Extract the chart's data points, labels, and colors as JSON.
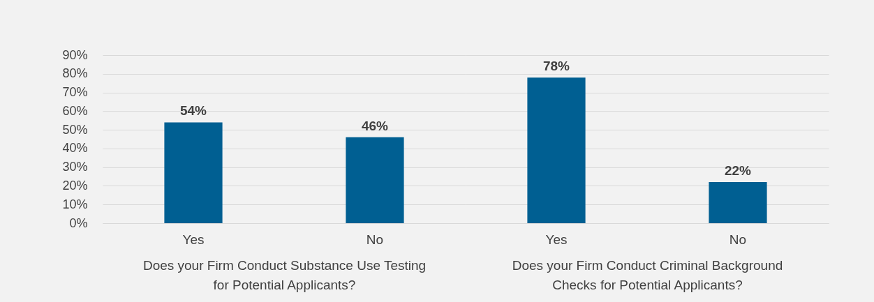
{
  "chart_data": [
    {
      "type": "bar",
      "xlabel": "Does your Firm Conduct Substance Use Testing for Potential Applicants?",
      "categories": [
        "Yes",
        "No"
      ],
      "values": [
        54,
        46
      ],
      "value_labels": [
        "54%",
        "46%"
      ],
      "color": "#005f92",
      "ylim": [
        0,
        90
      ],
      "yticks": [
        {
          "value": 0,
          "label": "0%"
        },
        {
          "value": 10,
          "label": "10%"
        },
        {
          "value": 20,
          "label": "20%"
        },
        {
          "value": 30,
          "label": "30%"
        },
        {
          "value": 40,
          "label": "40%"
        },
        {
          "value": 50,
          "label": "50%"
        },
        {
          "value": 60,
          "label": "60%"
        },
        {
          "value": 70,
          "label": "70%"
        },
        {
          "value": 80,
          "label": "80%"
        },
        {
          "value": 90,
          "label": "90%"
        }
      ],
      "grid": "y"
    },
    {
      "type": "bar",
      "xlabel": "Does your Firm Conduct Criminal Background Checks for Potential Applicants?",
      "categories": [
        "Yes",
        "No"
      ],
      "values": [
        78,
        22
      ],
      "value_labels": [
        "78%",
        "22%"
      ],
      "color": "#005f92",
      "ylim": [
        0,
        90
      ],
      "yticks": [
        {
          "value": 0,
          "label": null
        },
        {
          "value": 10,
          "label": null
        },
        {
          "value": 20,
          "label": null
        },
        {
          "value": 30,
          "label": null
        },
        {
          "value": 40,
          "label": null
        },
        {
          "value": 50,
          "label": null
        },
        {
          "value": 60,
          "label": null
        },
        {
          "value": 70,
          "label": null
        },
        {
          "value": 80,
          "label": null
        },
        {
          "value": 90,
          "label": null
        }
      ],
      "grid": "y",
      "tick_labels": "x"
    }
  ]
}
